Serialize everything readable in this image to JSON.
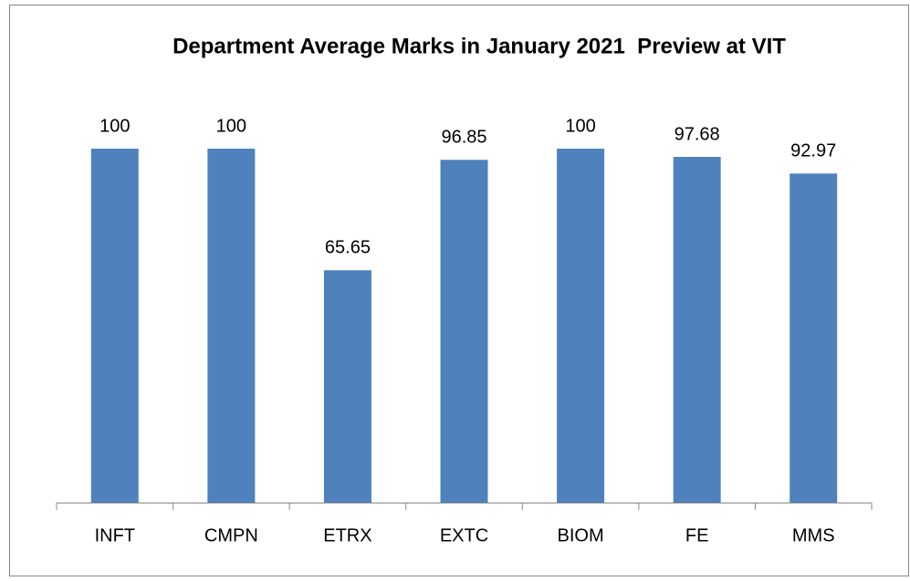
{
  "chart_data": {
    "type": "bar",
    "title": "Department Average Marks in January 2021  Preview at VIT",
    "categories": [
      "INFT",
      "CMPN",
      "ETRX",
      "EXTC",
      "BIOM",
      "FE",
      "MMS"
    ],
    "values": [
      100,
      100,
      65.65,
      96.85,
      100,
      97.68,
      92.97
    ],
    "color": "#4f81bd"
  }
}
